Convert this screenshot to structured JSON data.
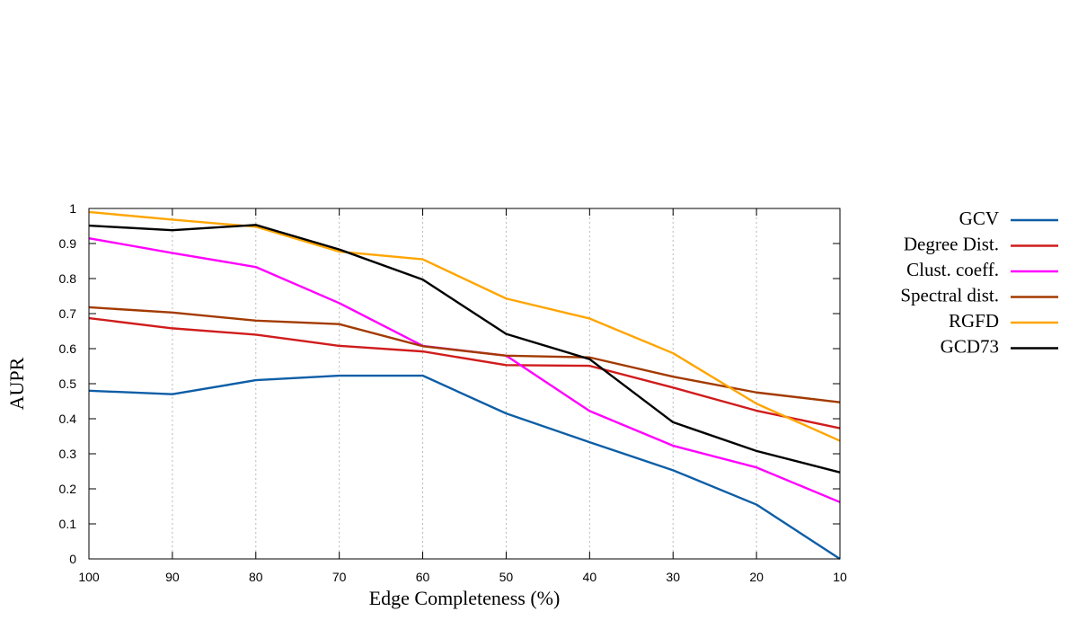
{
  "chart_data": {
    "type": "line",
    "title": "",
    "xlabel": "Edge Completeness (%)",
    "ylabel": "AUPR",
    "x": [
      100,
      90,
      80,
      70,
      60,
      50,
      40,
      30,
      20,
      10
    ],
    "x_tick_labels": [
      "100",
      "90",
      "80",
      "70",
      "60",
      "50",
      "40",
      "30",
      "20",
      "10"
    ],
    "y_tick_labels": [
      "0",
      "0.1",
      "0.2",
      "0.3",
      "0.4",
      "0.5",
      "0.6",
      "0.7",
      "0.8",
      "0.9",
      "1"
    ],
    "xlim": [
      100,
      10
    ],
    "ylim": [
      0,
      1
    ],
    "x_grid": true,
    "y_grid": false,
    "legend_position": "outside-right",
    "series": [
      {
        "name": "GCV",
        "color": "#0d5ea6",
        "values": [
          0.48,
          0.47,
          0.51,
          0.523,
          0.523,
          0.415,
          0.333,
          0.253,
          0.155,
          0.0
        ]
      },
      {
        "name": "Degree Dist.",
        "color": "#d01c1c",
        "values": [
          0.687,
          0.658,
          0.64,
          0.608,
          0.592,
          0.553,
          0.551,
          0.489,
          0.423,
          0.373
        ]
      },
      {
        "name": "Clust. coeff.",
        "color": "#ff00ff",
        "values": [
          0.915,
          0.873,
          0.833,
          0.73,
          0.608,
          0.58,
          0.422,
          0.323,
          0.261,
          0.162
        ]
      },
      {
        "name": "Spectral dist.",
        "color": "#a33a00",
        "values": [
          0.718,
          0.703,
          0.68,
          0.67,
          0.607,
          0.58,
          0.575,
          0.52,
          0.475,
          0.447
        ]
      },
      {
        "name": "RGFD",
        "color": "#ffa500",
        "values": [
          0.99,
          0.968,
          0.948,
          0.877,
          0.855,
          0.743,
          0.686,
          0.587,
          0.443,
          0.337
        ]
      },
      {
        "name": "GCD73",
        "color": "#000000",
        "values": [
          0.951,
          0.938,
          0.953,
          0.883,
          0.797,
          0.642,
          0.57,
          0.39,
          0.308,
          0.247
        ]
      }
    ]
  }
}
